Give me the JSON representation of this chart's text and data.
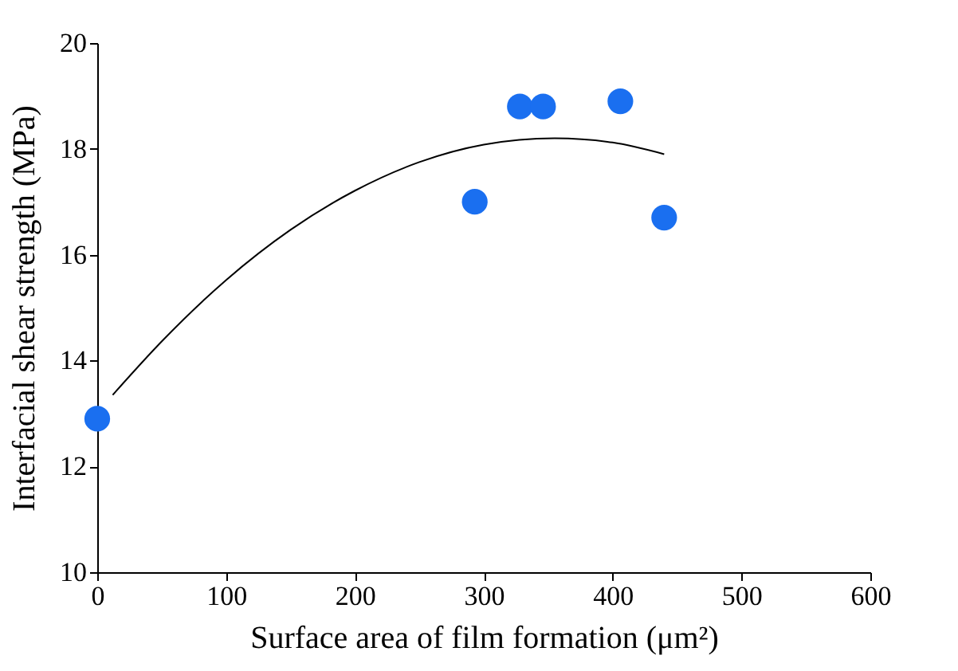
{
  "chart_data": {
    "type": "scatter",
    "xlabel": "Surface area of film formation (μm²)",
    "ylabel": "Interfacial shear strength  (MPa)",
    "xlim": [
      0,
      600
    ],
    "xticks": [
      0,
      100,
      200,
      300,
      400,
      500,
      600
    ],
    "ylim": [
      10,
      20
    ],
    "yticks": [
      10,
      12,
      14,
      16,
      18,
      20
    ],
    "grid": false,
    "series": [
      {
        "marker": "circle",
        "color": "#1a6ff0",
        "x": [
          0,
          293,
          328,
          346,
          406,
          440
        ],
        "values": [
          12.9,
          17.0,
          18.8,
          18.8,
          18.9,
          16.7
        ]
      },
      {
        "type": "line",
        "marker": "none",
        "color": "#000000",
        "x": [
          12,
          50,
          100,
          150,
          200,
          250,
          300,
          355,
          400,
          440
        ],
        "values": [
          13.35,
          14.36,
          15.52,
          16.47,
          17.21,
          17.75,
          18.08,
          18.2,
          18.12,
          17.9
        ]
      }
    ]
  }
}
